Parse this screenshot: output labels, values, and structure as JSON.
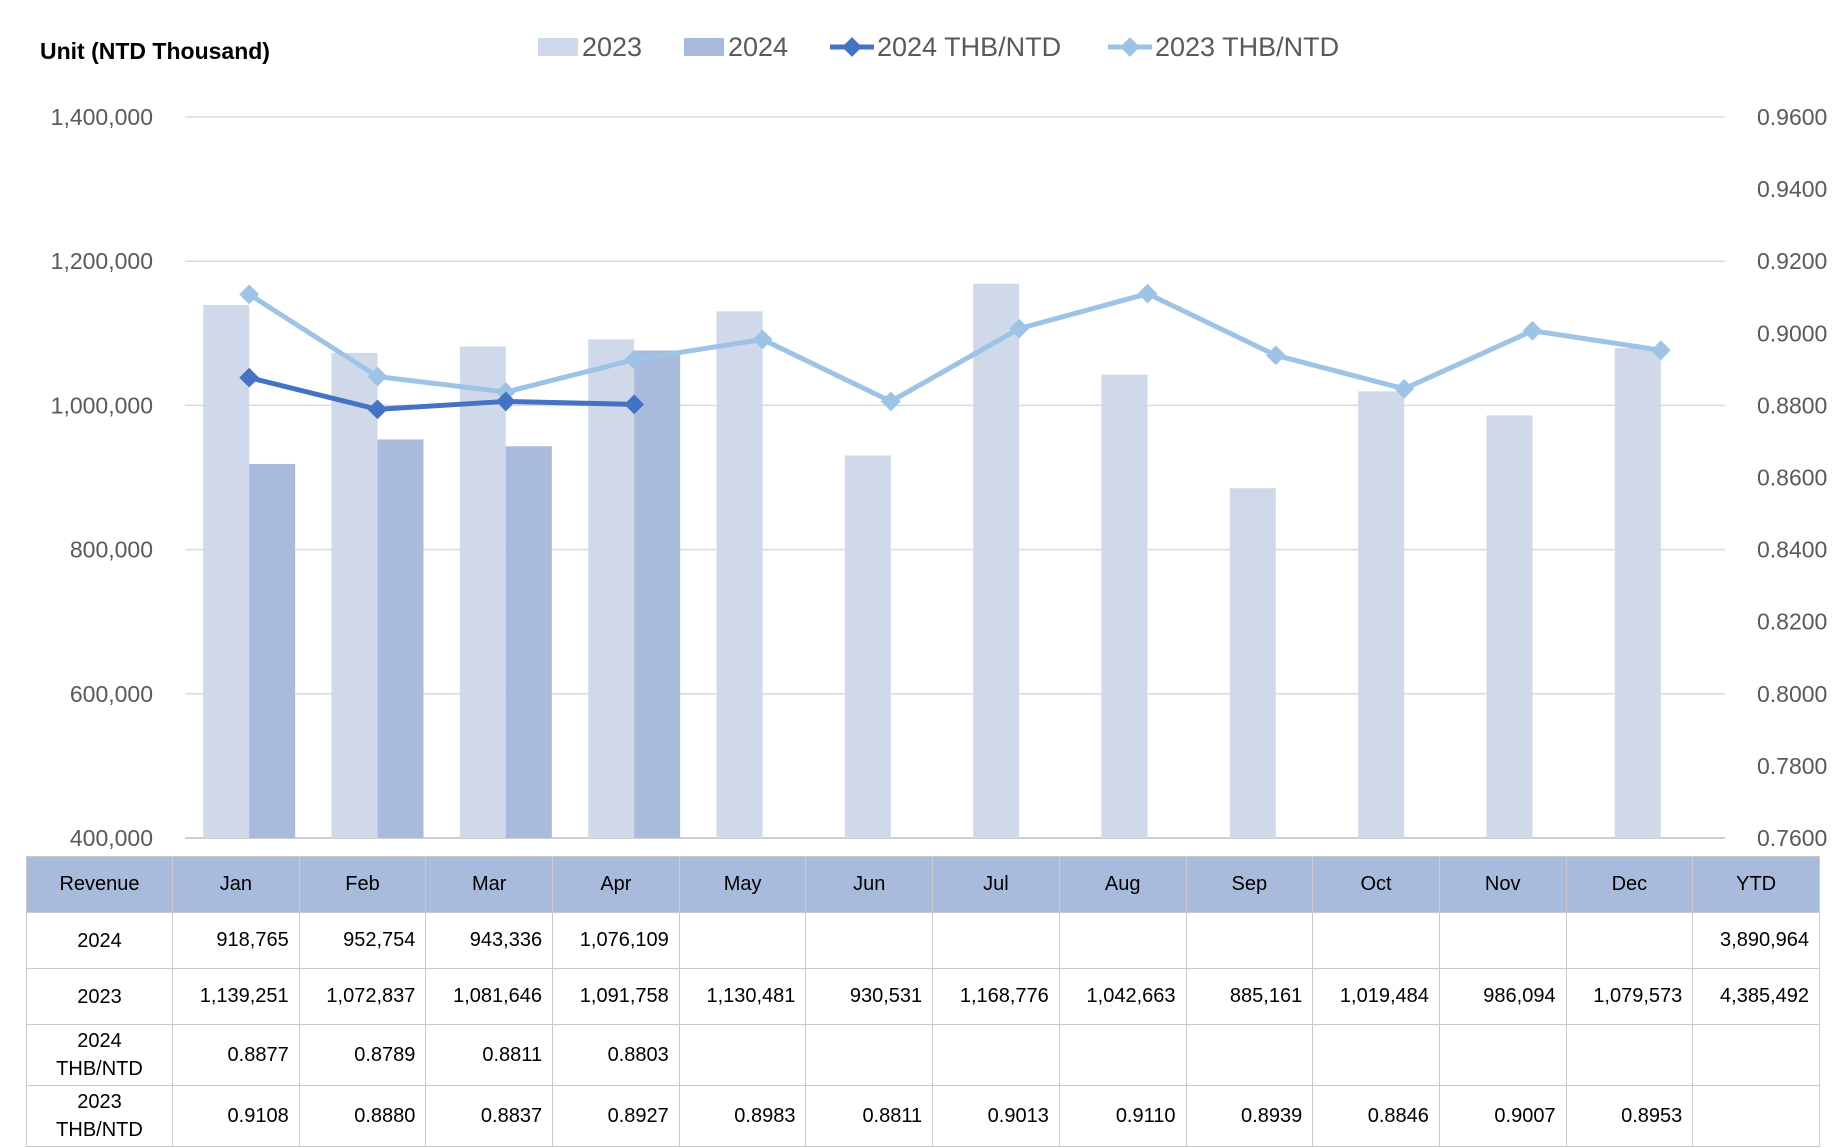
{
  "chart_data": {
    "type": "bar",
    "unit_label": "Unit (NTD  Thousand)",
    "categories": [
      "Jan",
      "Feb",
      "Mar",
      "Apr",
      "May",
      "Jun",
      "Jul",
      "Aug",
      "Sep",
      "Oct",
      "Nov",
      "Dec"
    ],
    "bar_series": [
      {
        "name": "2023",
        "color": "#cfd9ea",
        "values": [
          1139251,
          1072837,
          1081646,
          1091758,
          1130481,
          930531,
          1168776,
          1042663,
          885161,
          1019484,
          986094,
          1079573
        ]
      },
      {
        "name": "2024",
        "color": "#a9bbdc",
        "values": [
          918765,
          952754,
          943336,
          1076109,
          null,
          null,
          null,
          null,
          null,
          null,
          null,
          null
        ]
      }
    ],
    "line_series": [
      {
        "name": "2024 THB/NTD",
        "color": "#4472c4",
        "values": [
          0.8877,
          0.8789,
          0.8811,
          0.8803,
          null,
          null,
          null,
          null,
          null,
          null,
          null,
          null
        ]
      },
      {
        "name": "2023 THB/NTD",
        "color": "#9dc3e6",
        "values": [
          0.9108,
          0.888,
          0.8837,
          0.8927,
          0.8983,
          0.8811,
          0.9013,
          0.911,
          0.8939,
          0.8846,
          0.9007,
          0.8953
        ]
      }
    ],
    "y_left": {
      "min": 400000,
      "max": 1400000,
      "ticks": [
        "400,000",
        "600,000",
        "800,000",
        "1,000,000",
        "1,200,000",
        "1,400,000"
      ]
    },
    "y_right": {
      "min": 0.76,
      "max": 0.96,
      "ticks": [
        "0.7600",
        "0.7800",
        "0.8000",
        "0.8200",
        "0.8400",
        "0.8600",
        "0.8800",
        "0.9000",
        "0.9200",
        "0.9400",
        "0.9600"
      ]
    },
    "legend_position": "top",
    "grid": true
  },
  "table": {
    "header": [
      "Revenue",
      "Jan",
      "Feb",
      "Mar",
      "Apr",
      "May",
      "Jun",
      "Jul",
      "Aug",
      "Sep",
      "Oct",
      "Nov",
      "Dec",
      "YTD"
    ],
    "rows": [
      {
        "label": "2024",
        "cells": [
          "918,765",
          "952,754",
          "943,336",
          "1,076,109",
          "",
          "",
          "",
          "",
          "",
          "",
          "",
          "",
          "3,890,964"
        ]
      },
      {
        "label": "2023",
        "cells": [
          "1,139,251",
          "1,072,837",
          "1,081,646",
          "1,091,758",
          "1,130,481",
          "930,531",
          "1,168,776",
          "1,042,663",
          "885,161",
          "1,019,484",
          "986,094",
          "1,079,573",
          "4,385,492"
        ]
      },
      {
        "label": "2024\nTHB/NTD",
        "cells": [
          "0.8877",
          "0.8789",
          "0.8811",
          "0.8803",
          "",
          "",
          "",
          "",
          "",
          "",
          "",
          "",
          ""
        ]
      },
      {
        "label": "2023\nTHB/NTD",
        "cells": [
          "0.9108",
          "0.8880",
          "0.8837",
          "0.8927",
          "0.8983",
          "0.8811",
          "0.9013",
          "0.9110",
          "0.8939",
          "0.8846",
          "0.9007",
          "0.8953",
          ""
        ]
      }
    ]
  }
}
